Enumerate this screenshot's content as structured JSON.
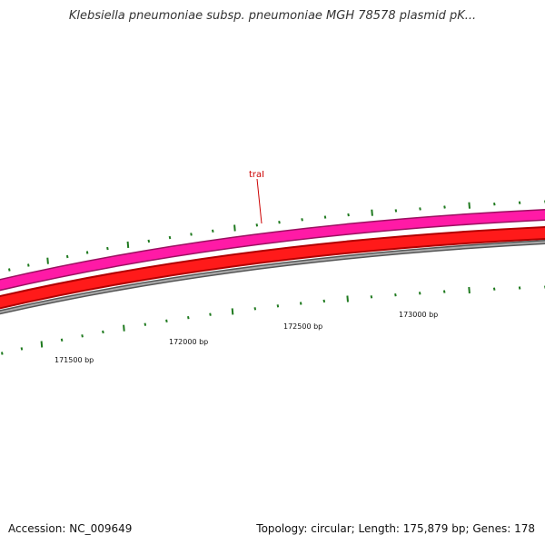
{
  "title": "Klebsiella pneumoniae subsp. pneumoniae MGH 78578 plasmid pK...",
  "footer": {
    "accession": "Accession: NC_009649",
    "summary": "Topology: circular; Length: 175,879 bp; Genes: 178"
  },
  "colors": {
    "outer_ring": "#ff1493",
    "inner_ring": "#ff0000",
    "backbone": "#888888",
    "gc_ticks": "#1f7a1f",
    "gene_label": "#cc0000"
  },
  "gene_label": "traI",
  "position_labels": [
    "171500 bp",
    "172000 bp",
    "172500 bp",
    "173000 bp"
  ]
}
